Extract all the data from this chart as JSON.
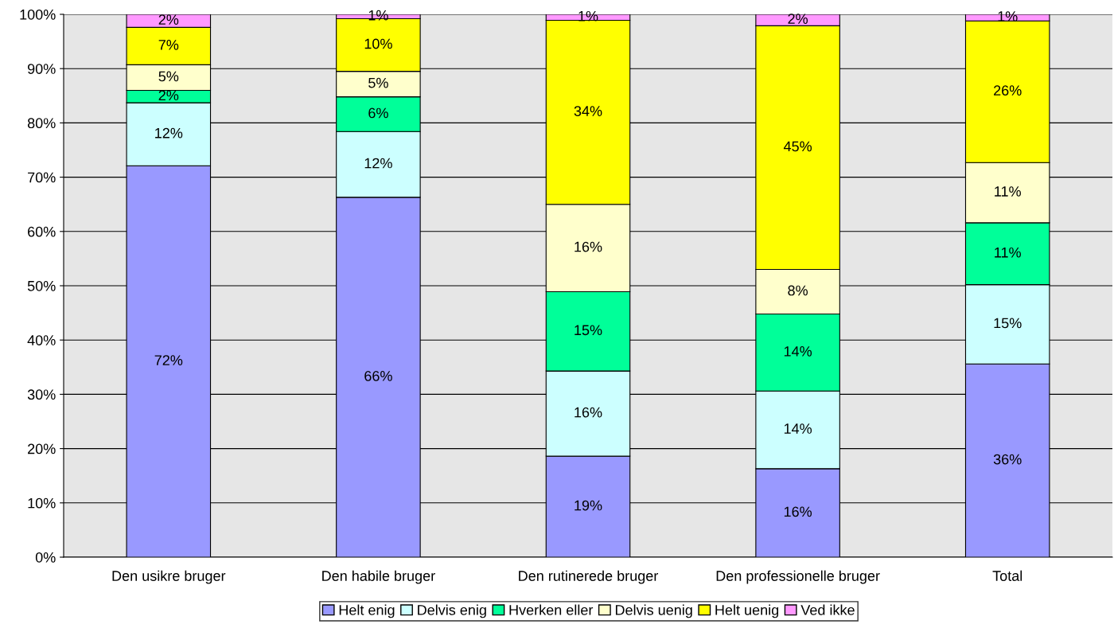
{
  "chart_data": {
    "type": "bar",
    "stacked": true,
    "categories": [
      "Den usikre bruger",
      "Den habile bruger",
      "Den rutinerede bruger",
      "Den professionelle bruger",
      "Total"
    ],
    "series": [
      {
        "name": "Helt enig",
        "color": "#9999ff",
        "values": [
          72.1,
          66.3,
          18.6,
          16.3,
          35.6
        ],
        "value_labels": [
          "72%",
          "66%",
          "19%",
          "16%",
          "36%"
        ]
      },
      {
        "name": "Delvis enig",
        "color": "#ccffff",
        "values": [
          11.6,
          12.1,
          15.7,
          14.3,
          14.6
        ],
        "value_labels": [
          "12%",
          "12%",
          "16%",
          "14%",
          "15%"
        ]
      },
      {
        "name": "Hverken eller",
        "color": "#00ff99",
        "values": [
          2.3,
          6.4,
          14.6,
          14.2,
          11.4
        ],
        "value_labels": [
          "2%",
          "6%",
          "15%",
          "14%",
          "11%"
        ]
      },
      {
        "name": "Delvis uenig",
        "color": "#ffffcc",
        "values": [
          4.7,
          4.7,
          16.1,
          8.2,
          11.1
        ],
        "value_labels": [
          "5%",
          "5%",
          "16%",
          "8%",
          "11%"
        ]
      },
      {
        "name": "Helt uenig",
        "color": "#ffff00",
        "values": [
          6.9,
          9.7,
          33.9,
          44.9,
          26.1
        ],
        "value_labels": [
          "7%",
          "10%",
          "34%",
          "45%",
          "26%"
        ]
      },
      {
        "name": "Ved ikke",
        "color": "#ff99ff",
        "values": [
          2.4,
          0.8,
          1.1,
          2.1,
          1.2
        ],
        "value_labels": [
          "2%",
          "1%",
          "1%",
          "2%",
          "1%"
        ]
      }
    ],
    "ylim": [
      0,
      100
    ],
    "yticks": [
      {
        "value": 0,
        "label": "0%"
      },
      {
        "value": 10,
        "label": "10%"
      },
      {
        "value": 20,
        "label": "20%"
      },
      {
        "value": 30,
        "label": "30%"
      },
      {
        "value": 40,
        "label": "40%"
      },
      {
        "value": 50,
        "label": "50%"
      },
      {
        "value": 60,
        "label": "60%"
      },
      {
        "value": 70,
        "label": "70%"
      },
      {
        "value": 80,
        "label": "80%"
      },
      {
        "value": 90,
        "label": "90%"
      },
      {
        "value": 100,
        "label": "100%"
      }
    ],
    "grid": "y",
    "legend": "bottom"
  }
}
